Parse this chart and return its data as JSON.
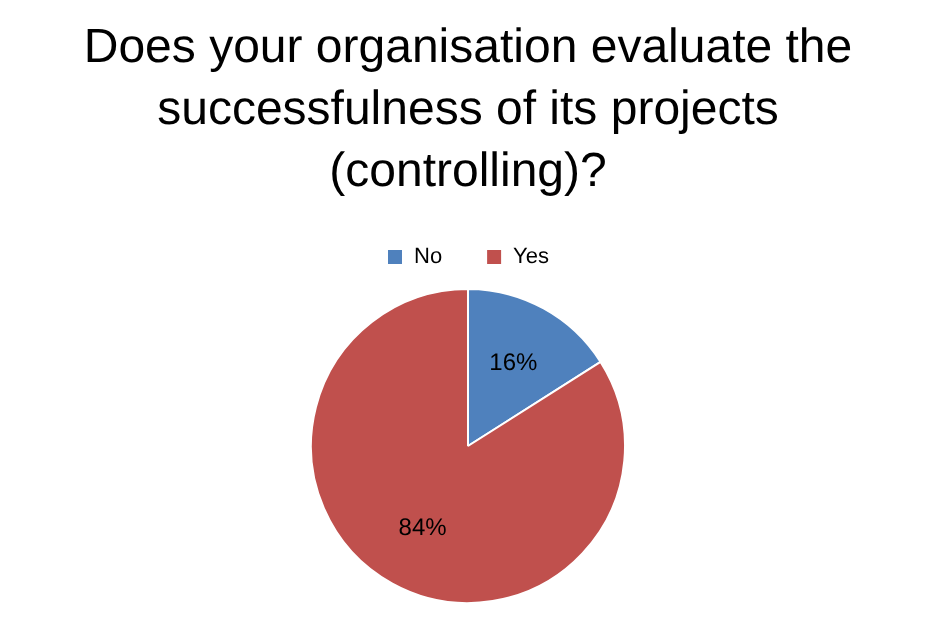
{
  "chart_data": {
    "type": "pie",
    "title": "Does your organisation evaluate the successfulness of its projects (controlling)?",
    "categories": [
      "No",
      "Yes"
    ],
    "values": [
      16,
      84
    ],
    "colors": [
      "#4f81bd",
      "#c0504d"
    ],
    "value_labels": [
      "16%",
      "84%"
    ],
    "legend": "top"
  }
}
